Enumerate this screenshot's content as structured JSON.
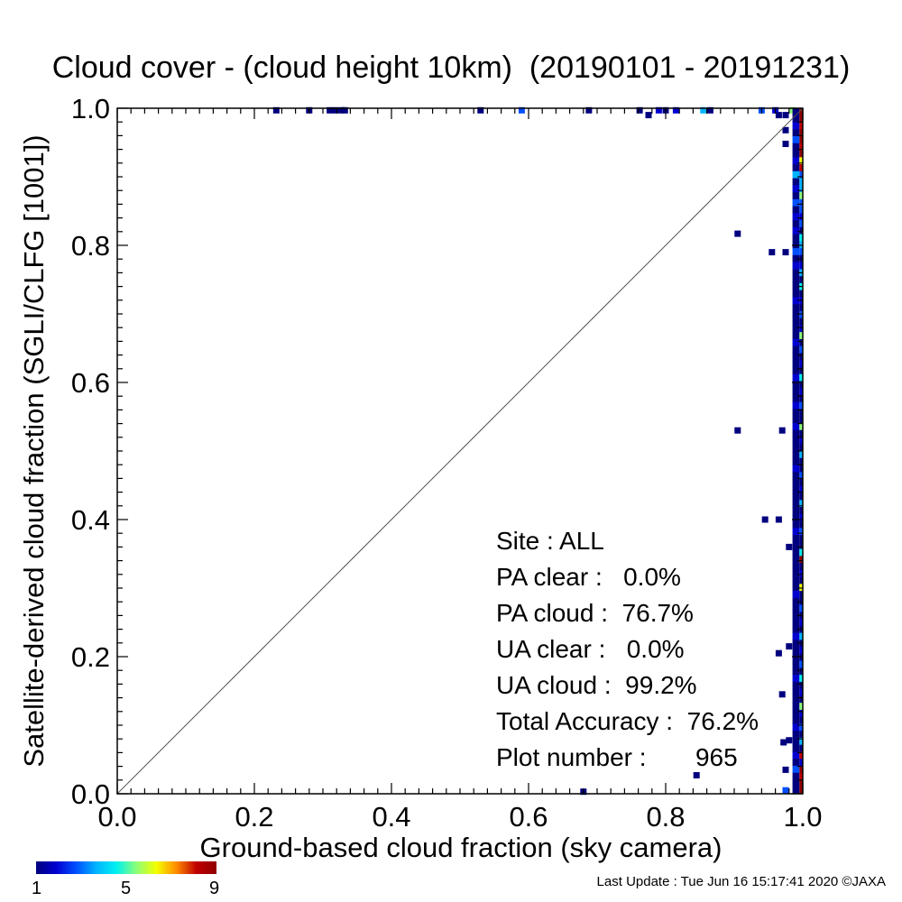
{
  "title": "Cloud cover - (cloud height 10km)  (20190101 - 20191231)",
  "chart_data": {
    "type": "scatter",
    "xlabel": "Ground-based cloud fraction (sky camera)",
    "ylabel": "Satellite-derived cloud fraction (SGLI/CLFG [1001])",
    "xlim": [
      0.0,
      1.0
    ],
    "ylim": [
      0.0,
      1.0
    ],
    "xticks": [
      "0.0",
      "0.2",
      "0.4",
      "0.6",
      "0.8",
      "1.0"
    ],
    "yticks": [
      "0.0",
      "0.2",
      "0.4",
      "0.6",
      "0.8",
      "1.0"
    ],
    "grid": false,
    "reference_line": "1:1 diagonal",
    "colorbar": {
      "min": 1,
      "max": 9,
      "labels": [
        "1",
        "5",
        "9"
      ]
    },
    "points": [
      {
        "x": 0.232,
        "y": 0.997,
        "count": 1
      },
      {
        "x": 0.28,
        "y": 0.997,
        "count": 1
      },
      {
        "x": 0.31,
        "y": 0.997,
        "count": 1
      },
      {
        "x": 0.318,
        "y": 0.997,
        "count": 1
      },
      {
        "x": 0.327,
        "y": 0.997,
        "count": 1
      },
      {
        "x": 0.332,
        "y": 0.997,
        "count": 1
      },
      {
        "x": 0.53,
        "y": 0.997,
        "count": 1
      },
      {
        "x": 0.59,
        "y": 0.997,
        "count": 3
      },
      {
        "x": 0.688,
        "y": 0.997,
        "count": 1
      },
      {
        "x": 0.762,
        "y": 0.997,
        "count": 1
      },
      {
        "x": 0.775,
        "y": 0.99,
        "count": 1
      },
      {
        "x": 0.79,
        "y": 0.997,
        "count": 2
      },
      {
        "x": 0.8,
        "y": 0.997,
        "count": 1
      },
      {
        "x": 0.815,
        "y": 0.997,
        "count": 2
      },
      {
        "x": 0.855,
        "y": 0.997,
        "count": 4
      },
      {
        "x": 0.865,
        "y": 0.997,
        "count": 1
      },
      {
        "x": 0.94,
        "y": 0.997,
        "count": 3
      },
      {
        "x": 0.96,
        "y": 0.997,
        "count": 2
      },
      {
        "x": 0.965,
        "y": 0.99,
        "count": 1
      },
      {
        "x": 0.975,
        "y": 0.99,
        "count": 1
      },
      {
        "x": 0.985,
        "y": 0.997,
        "count": 6
      },
      {
        "x": 0.975,
        "y": 0.968,
        "count": 1
      },
      {
        "x": 0.975,
        "y": 0.948,
        "count": 1
      },
      {
        "x": 0.905,
        "y": 0.817,
        "count": 1
      },
      {
        "x": 0.955,
        "y": 0.79,
        "count": 1
      },
      {
        "x": 0.975,
        "y": 0.79,
        "count": 1
      },
      {
        "x": 0.905,
        "y": 0.53,
        "count": 1
      },
      {
        "x": 0.97,
        "y": 0.53,
        "count": 1
      },
      {
        "x": 0.945,
        "y": 0.4,
        "count": 1
      },
      {
        "x": 0.965,
        "y": 0.4,
        "count": 1
      },
      {
        "x": 0.98,
        "y": 0.36,
        "count": 1
      },
      {
        "x": 0.965,
        "y": 0.205,
        "count": 1
      },
      {
        "x": 0.98,
        "y": 0.215,
        "count": 1
      },
      {
        "x": 0.97,
        "y": 0.145,
        "count": 1
      },
      {
        "x": 0.972,
        "y": 0.075,
        "count": 1
      },
      {
        "x": 0.98,
        "y": 0.078,
        "count": 1
      },
      {
        "x": 0.975,
        "y": 0.035,
        "count": 1
      },
      {
        "x": 0.975,
        "y": 0.005,
        "count": 3
      },
      {
        "x": 0.845,
        "y": 0.027,
        "count": 1
      },
      {
        "x": 0.68,
        "y": 0.003,
        "count": 1
      }
    ],
    "right_column_counts": {
      "x_band": [
        0.985,
        0.995,
        1.0
      ],
      "values_top_to_bottom": [
        [
          9,
          1
        ],
        [
          9,
          1
        ],
        [
          8,
          2
        ],
        [
          9,
          1
        ],
        [
          9,
          3
        ],
        [
          8,
          1
        ],
        [
          9,
          1
        ],
        [
          7,
          2
        ],
        [
          8,
          1
        ],
        [
          3,
          4
        ],
        [
          4,
          1
        ],
        [
          4,
          2
        ],
        [
          6,
          1
        ],
        [
          3,
          3
        ],
        [
          3,
          1
        ],
        [
          2,
          2
        ],
        [
          3,
          1
        ],
        [
          1,
          2
        ],
        [
          5,
          1
        ],
        [
          4,
          1
        ],
        [
          3,
          3
        ],
        [
          1,
          1
        ],
        [
          2,
          2
        ],
        [
          4,
          1
        ],
        [
          1,
          1
        ],
        [
          5,
          1
        ],
        [
          1,
          1
        ],
        [
          2,
          2
        ],
        [
          1,
          1
        ],
        [
          3,
          1
        ],
        [
          1,
          1
        ],
        [
          2,
          1
        ],
        [
          6,
          1
        ],
        [
          1,
          2
        ],
        [
          3,
          1
        ],
        [
          1,
          1
        ],
        [
          2,
          1
        ],
        [
          1,
          1
        ],
        [
          5,
          2
        ],
        [
          1,
          1
        ],
        [
          2,
          1
        ],
        [
          1,
          1
        ],
        [
          3,
          2
        ],
        [
          1,
          1
        ],
        [
          1,
          1
        ],
        [
          6,
          2
        ],
        [
          1,
          1
        ],
        [
          2,
          1
        ],
        [
          1,
          1
        ],
        [
          4,
          1
        ],
        [
          1,
          1
        ],
        [
          1,
          2
        ],
        [
          3,
          1
        ],
        [
          1,
          1
        ],
        [
          2,
          1
        ],
        [
          1,
          1
        ],
        [
          4,
          1
        ],
        [
          1,
          1
        ],
        [
          2,
          1
        ],
        [
          1,
          1
        ],
        [
          3,
          2
        ],
        [
          1,
          1
        ],
        [
          1,
          1
        ],
        [
          5,
          1
        ],
        [
          9,
          1
        ],
        [
          1,
          1
        ],
        [
          2,
          1
        ],
        [
          1,
          1
        ],
        [
          7,
          1
        ],
        [
          1,
          2
        ],
        [
          1,
          1
        ],
        [
          3,
          1
        ],
        [
          1,
          1
        ],
        [
          2,
          1
        ],
        [
          1,
          1
        ],
        [
          4,
          2
        ],
        [
          1,
          1
        ],
        [
          2,
          1
        ],
        [
          1,
          1
        ],
        [
          3,
          1
        ],
        [
          1,
          1
        ],
        [
          5,
          2
        ],
        [
          1,
          1
        ],
        [
          2,
          1
        ],
        [
          1,
          1
        ],
        [
          6,
          1
        ],
        [
          2,
          1
        ],
        [
          1,
          1
        ],
        [
          3,
          2
        ],
        [
          1,
          1
        ],
        [
          4,
          1
        ],
        [
          1,
          1
        ],
        [
          8,
          2
        ],
        [
          2,
          1
        ],
        [
          9,
          3
        ],
        [
          8,
          1
        ],
        [
          9,
          1
        ],
        [
          9,
          1
        ]
      ]
    }
  },
  "stats": {
    "site": "Site : ALL",
    "pa_clear": "PA clear :   0.0%",
    "pa_cloud": "PA cloud :  76.7%",
    "ua_clear": "UA clear :   0.0%",
    "ua_cloud": "UA cloud :  99.2%",
    "total_accuracy": "Total Accuracy :  76.2%",
    "plot_number": "Plot number :       965"
  },
  "colorbar_labels": {
    "min": "1",
    "mid": "5",
    "max": "9"
  },
  "footer": "Last Update : Tue Jun 16 15:17:41 2020  ©JAXA"
}
